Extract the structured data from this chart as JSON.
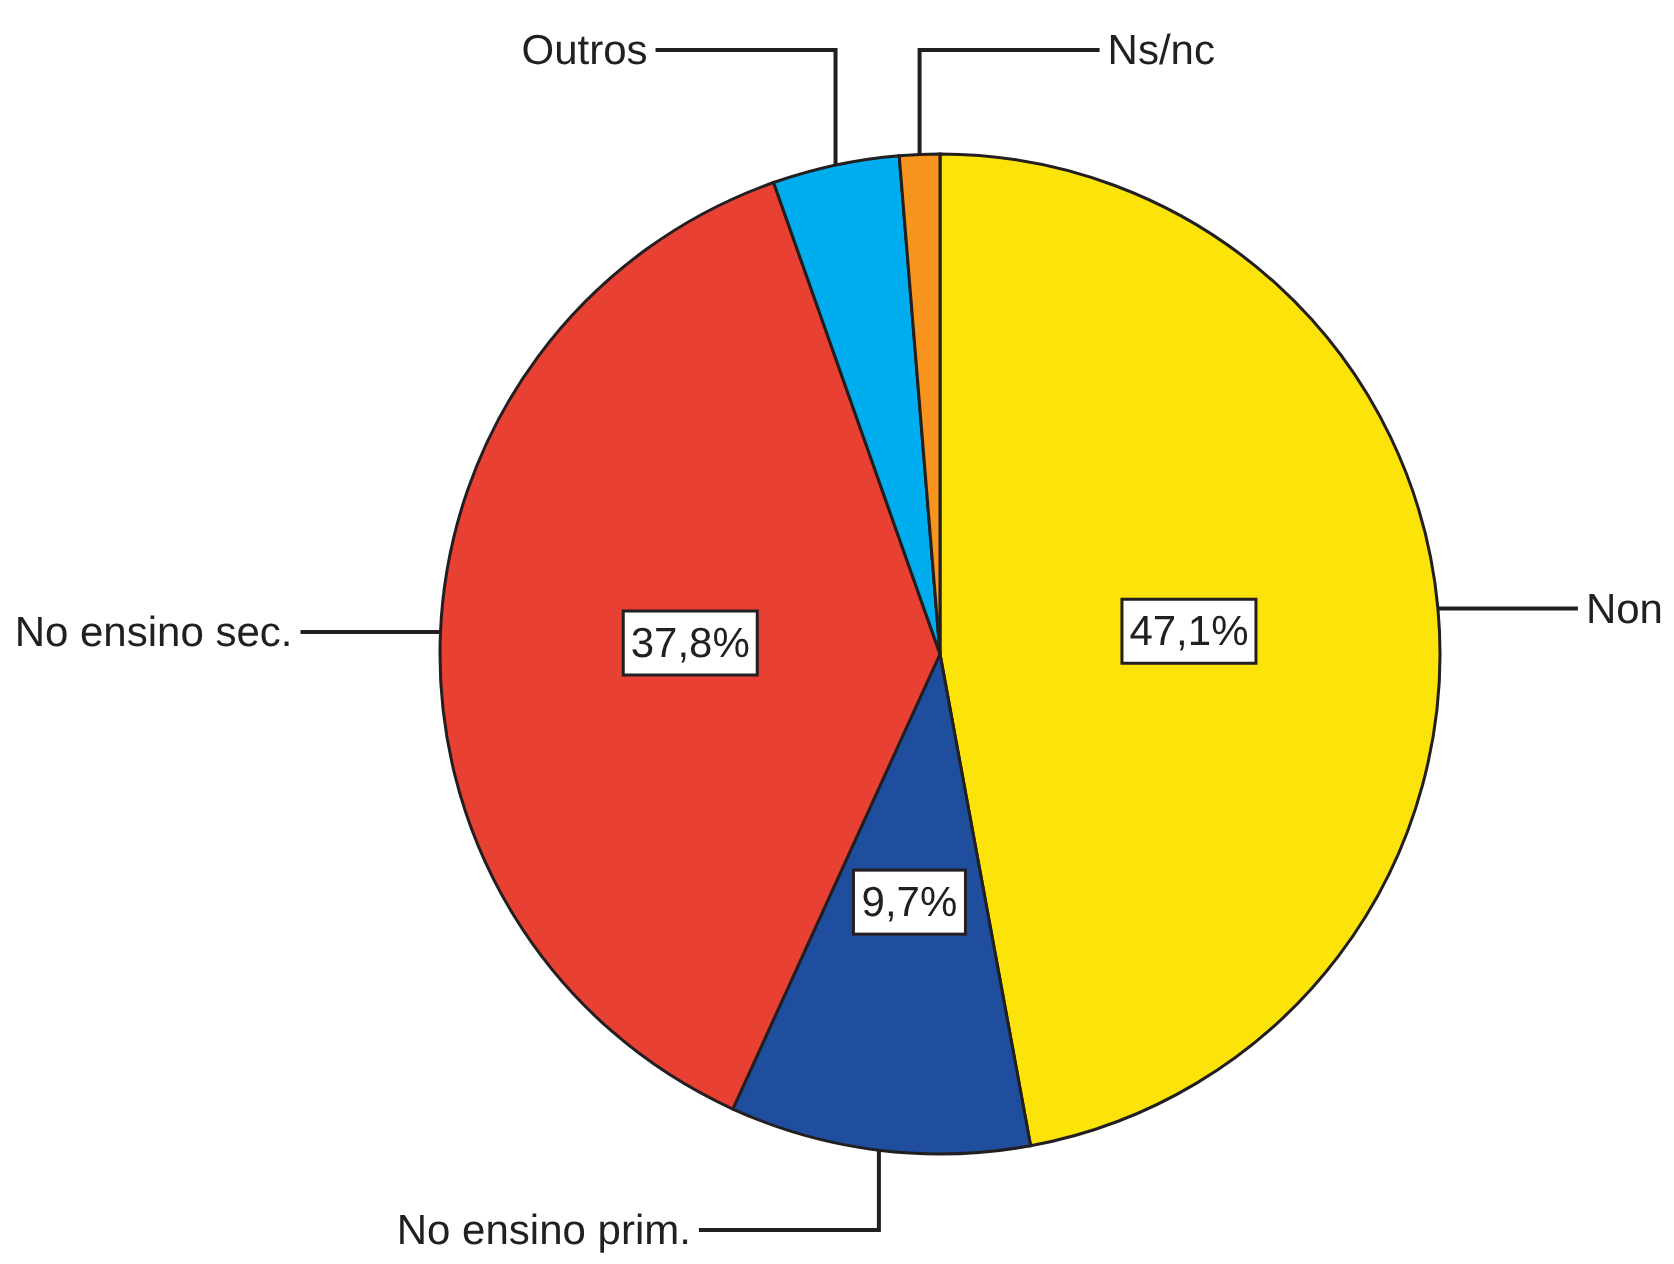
{
  "chart_data": {
    "type": "pie",
    "categories": [
      "Non",
      "No ensino prim.",
      "No ensino sec.",
      "Outros",
      "Ns/nc"
    ],
    "values": [
      47.1,
      9.7,
      37.8,
      4.1,
      1.3
    ],
    "colors": [
      "#fce40a",
      "#1f4e9e",
      "#e84033",
      "#00aeef",
      "#f7941d"
    ],
    "value_labels": [
      "47,1%",
      "9,7%",
      "37,8%",
      null,
      null
    ]
  }
}
